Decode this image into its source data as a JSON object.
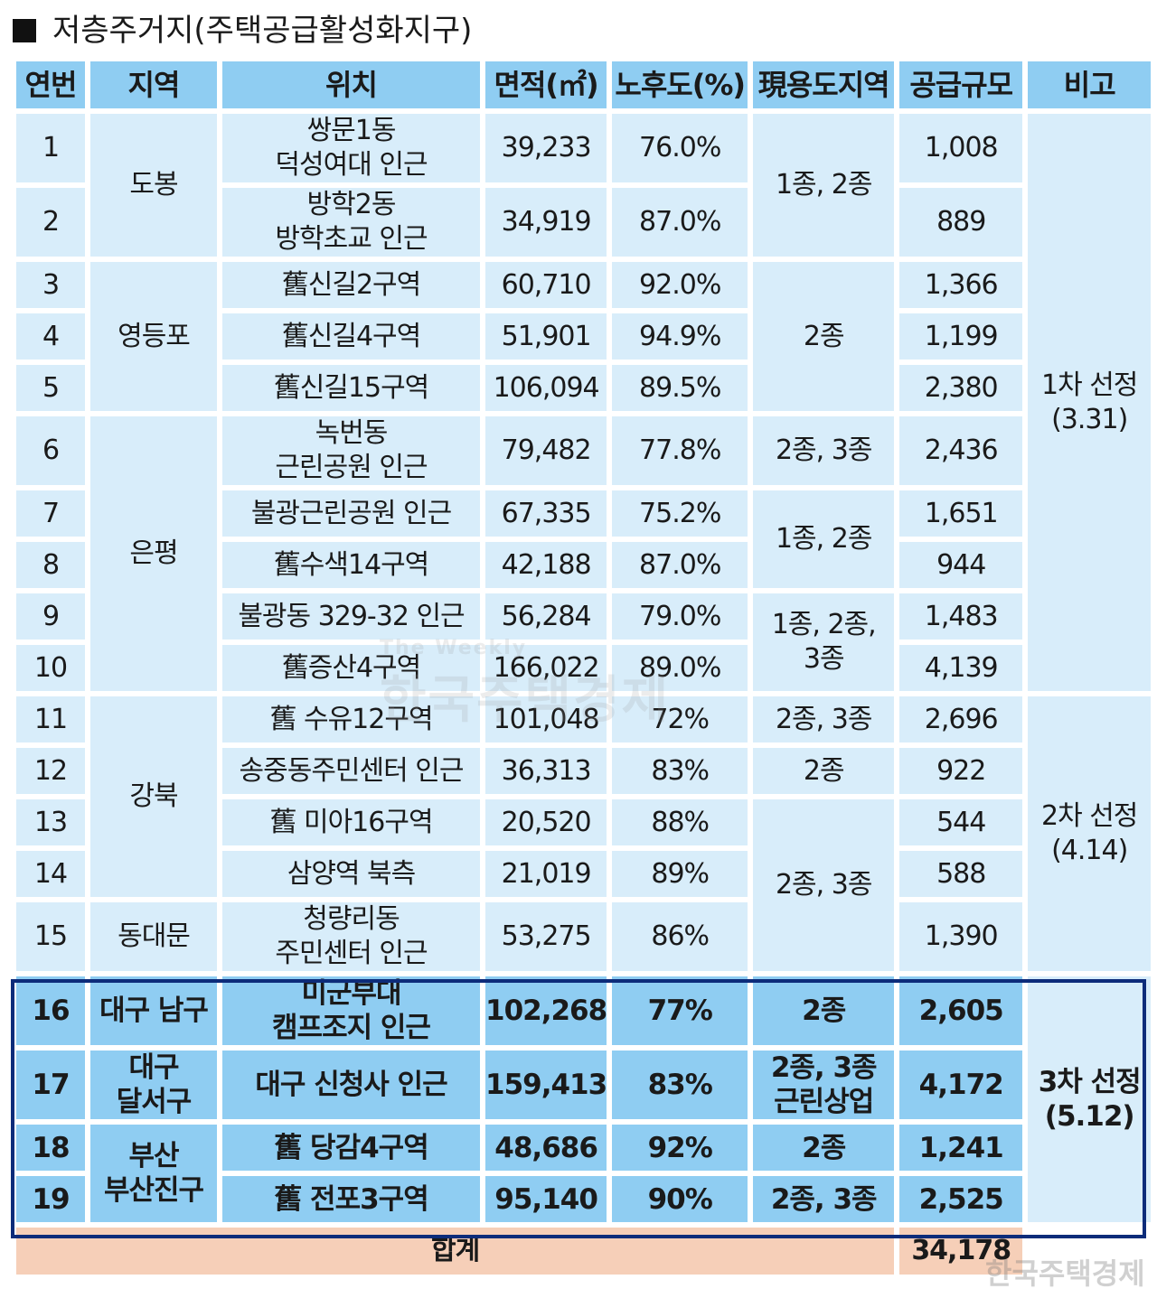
{
  "title": "저층주거지(주택공급활성화지구)",
  "headers": [
    "연번",
    "지역",
    "위치",
    "면적(㎡)",
    "노후도(%)",
    "現용도지역",
    "공급규모",
    "비고"
  ],
  "rows": [
    {
      "no": "1",
      "region": "도봉",
      "loc": [
        "쌍문1동",
        "덕성여대 인근"
      ],
      "area": "39,233",
      "age": "76.0%",
      "zone": "1종, 2종",
      "supply": "1,008",
      "note": "1차 선정(3.31)"
    },
    {
      "no": "2",
      "loc": [
        "방학2동",
        "방학초교 인근"
      ],
      "area": "34,919",
      "age": "87.0%",
      "supply": "889"
    },
    {
      "no": "3",
      "region": "영등포",
      "loc": [
        "舊신길2구역"
      ],
      "area": "60,710",
      "age": "92.0%",
      "zone": "2종",
      "supply": "1,366"
    },
    {
      "no": "4",
      "loc": [
        "舊신길4구역"
      ],
      "area": "51,901",
      "age": "94.9%",
      "supply": "1,199"
    },
    {
      "no": "5",
      "loc": [
        "舊신길15구역"
      ],
      "area": "106,094",
      "age": "89.5%",
      "supply": "2,380"
    },
    {
      "no": "6",
      "region": "은평",
      "loc": [
        "녹번동",
        "근린공원 인근"
      ],
      "area": "79,482",
      "age": "77.8%",
      "zone": "2종, 3종",
      "supply": "2,436"
    },
    {
      "no": "7",
      "loc": [
        "불광근린공원 인근"
      ],
      "area": "67,335",
      "age": "75.2%",
      "zone": "1종, 2종",
      "supply": "1,651"
    },
    {
      "no": "8",
      "loc": [
        "舊수색14구역"
      ],
      "area": "42,188",
      "age": "87.0%",
      "supply": "944"
    },
    {
      "no": "9",
      "loc": [
        "불광동 329-32 인근"
      ],
      "area": "56,284",
      "age": "79.0%",
      "zone": "1종, 2종, 3종",
      "supply": "1,483"
    },
    {
      "no": "10",
      "loc": [
        "舊증산4구역"
      ],
      "area": "166,022",
      "age": "89.0%",
      "supply": "4,139"
    },
    {
      "no": "11",
      "region": "강북",
      "loc": [
        "舊 수유12구역"
      ],
      "area": "101,048",
      "age": "72%",
      "zone": "2종, 3종",
      "supply": "2,696",
      "note": "2차 선정(4.14)"
    },
    {
      "no": "12",
      "loc": [
        "송중동주민센터 인근"
      ],
      "area": "36,313",
      "age": "83%",
      "zone": "2종",
      "supply": "922"
    },
    {
      "no": "13",
      "loc": [
        "舊 미아16구역"
      ],
      "area": "20,520",
      "age": "88%",
      "zone": "2종, 3종",
      "supply": "544"
    },
    {
      "no": "14",
      "loc": [
        "삼양역 북측"
      ],
      "area": "21,019",
      "age": "89%",
      "supply": "588"
    },
    {
      "no": "15",
      "region": "동대문",
      "loc": [
        "청량리동",
        "주민센터 인근"
      ],
      "area": "53,275",
      "age": "86%",
      "supply": "1,390"
    },
    {
      "no": "16",
      "region": "대구 남구",
      "loc": [
        "미군부대",
        "캠프조지 인근"
      ],
      "area": "102,268",
      "age": "77%",
      "zone": "2종",
      "supply": "2,605",
      "note": "3차 선정(5.12)"
    },
    {
      "no": "17",
      "region": "대구 달서구",
      "loc": [
        "대구 신청사 인근"
      ],
      "area": "159,413",
      "age": "83%",
      "zone": "2종, 3종 근린상업",
      "supply": "4,172"
    },
    {
      "no": "18",
      "region": "부산 부산진구",
      "loc": [
        "舊 당감4구역"
      ],
      "area": "48,686",
      "age": "92%",
      "zone": "2종",
      "supply": "1,241"
    },
    {
      "no": "19",
      "loc": [
        "舊 전포3구역"
      ],
      "area": "95,140",
      "age": "90%",
      "zone": "2종, 3종",
      "supply": "2,525"
    }
  ],
  "total": {
    "label": "합계",
    "supply": "34,178"
  },
  "watermark": {
    "en": "The Weekly",
    "ko": "한국주택경제"
  }
}
